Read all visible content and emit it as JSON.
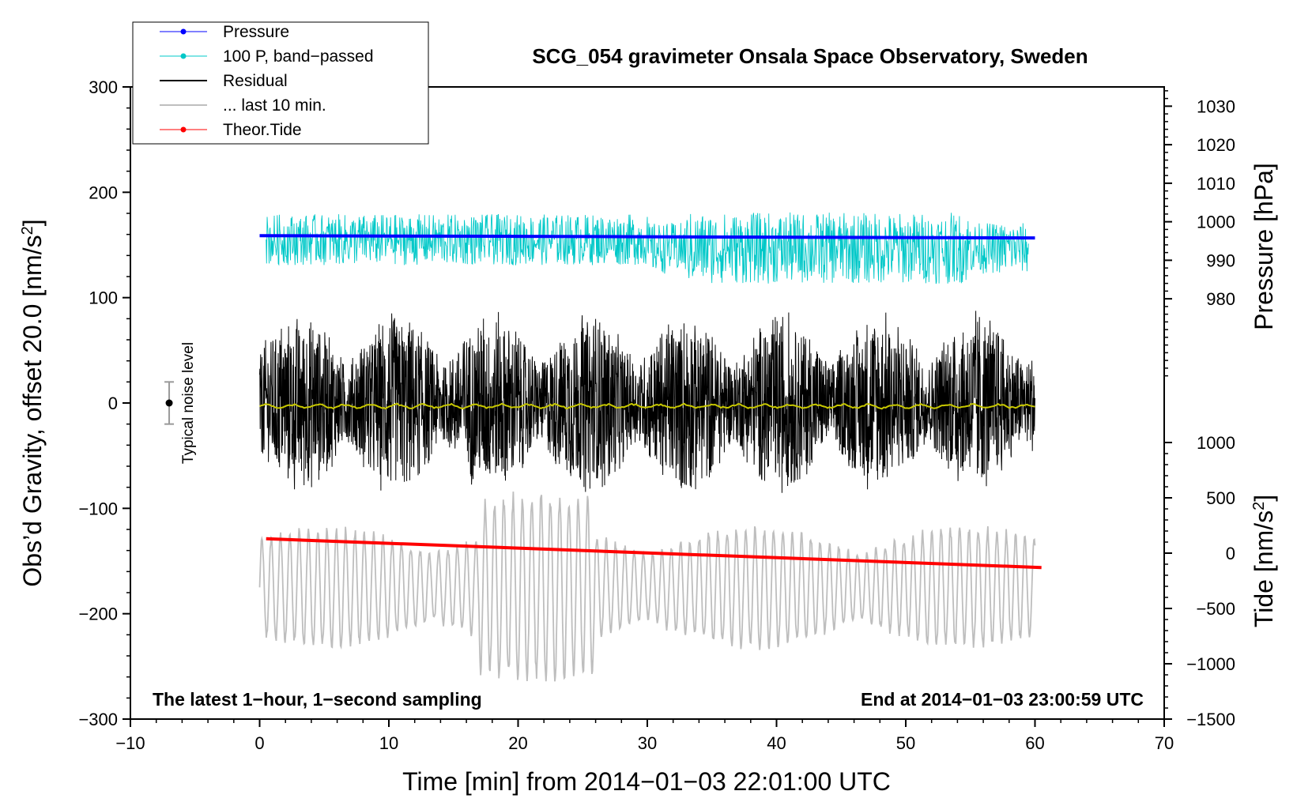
{
  "chart_data": {
    "type": "line",
    "title": "SCG_054 gravimeter Onsala Space Observatory, Sweden",
    "xlabel": "Time [min] from 2014−01−03 22:01:00 UTC",
    "ylabel_left": "Obs’d Gravity, offset 20.0 [nm/s",
    "ylabel_left_sup": "2",
    "ylabel_left_close": "]",
    "ylabel_right_pressure": "Pressure [hPa]",
    "ylabel_right_tide": "Tide [nm/s",
    "ylabel_right_tide_sup": "2",
    "ylabel_right_tide_close": "]",
    "xlim": [
      -10,
      70
    ],
    "ylim": [
      -300,
      300
    ],
    "x_ticks": [
      -10,
      0,
      10,
      20,
      30,
      40,
      50,
      60,
      70
    ],
    "x_tick_labels": [
      "−10",
      "0",
      "10",
      "20",
      "30",
      "40",
      "50",
      "60",
      "70"
    ],
    "y_ticks": [
      -300,
      -200,
      -100,
      0,
      100,
      200,
      300
    ],
    "y_tick_labels": [
      "−300",
      "−200",
      "−100",
      "0",
      "100",
      "200",
      "300"
    ],
    "pressure_axis": {
      "ticks": [
        980,
        990,
        1000,
        1010,
        1020,
        1030
      ],
      "tick_labels": [
        "980",
        "990",
        "1000",
        "1010",
        "1020",
        "1030"
      ],
      "ylim": [
        955,
        1035
      ]
    },
    "tide_axis": {
      "ticks": [
        -1500,
        -1000,
        -500,
        0,
        500,
        1000
      ],
      "tick_labels": [
        "−1500",
        "−1000",
        "−500",
        "0",
        "500",
        "1000"
      ],
      "ylim": [
        -1500,
        1000
      ]
    },
    "notes": {
      "left": "The latest 1−hour, 1−second sampling",
      "right": "End at 2014−01−03 23:00:59 UTC",
      "noise": "Typical noise level"
    },
    "noise_bar": {
      "x": -7,
      "center": 0,
      "half_range": 20
    },
    "legend": [
      {
        "label": "Pressure",
        "color": "#0000ff",
        "style": "line-dot"
      },
      {
        "label": "100 P, band−passed",
        "color": "#00c8c8",
        "style": "line-dot"
      },
      {
        "label": "Residual",
        "color": "#000000",
        "style": "line"
      },
      {
        "label": "... last 10 min.",
        "color": "#bebebe",
        "style": "line"
      },
      {
        "label": "Theor.Tide",
        "color": "#ff0000",
        "style": "line-dot"
      }
    ],
    "series": [
      {
        "name": "Pressure",
        "axis": "pressure",
        "color": "#0000ff",
        "x": [
          0,
          10,
          20,
          30,
          40,
          50,
          60
        ],
        "values": [
          996.4,
          996.3,
          996.2,
          996.1,
          996.0,
          995.9,
          995.8
        ]
      },
      {
        "name": "100 P, band−passed",
        "axis": "left",
        "color": "#00c8c8",
        "mean": 155,
        "amplitude": 22,
        "x_range": [
          0.5,
          59.5
        ]
      },
      {
        "name": "Residual",
        "axis": "left",
        "color": "#000000",
        "mean": 0,
        "amplitude": 60,
        "x_range": [
          0,
          60
        ]
      },
      {
        "name": "Residual (smoothed)",
        "axis": "left",
        "color": "#c8c800",
        "x": [
          0,
          60
        ],
        "values": [
          -3,
          -3
        ]
      },
      {
        "name": "... last 10 min.",
        "axis": "left",
        "color": "#bebebe",
        "mean": -175,
        "amplitude": 55,
        "x_range": [
          0,
          60
        ]
      },
      {
        "name": "Theor.Tide",
        "axis": "tide",
        "color": "#ff0000",
        "x": [
          0.5,
          60.5
        ],
        "values": [
          130,
          -130
        ]
      }
    ]
  }
}
